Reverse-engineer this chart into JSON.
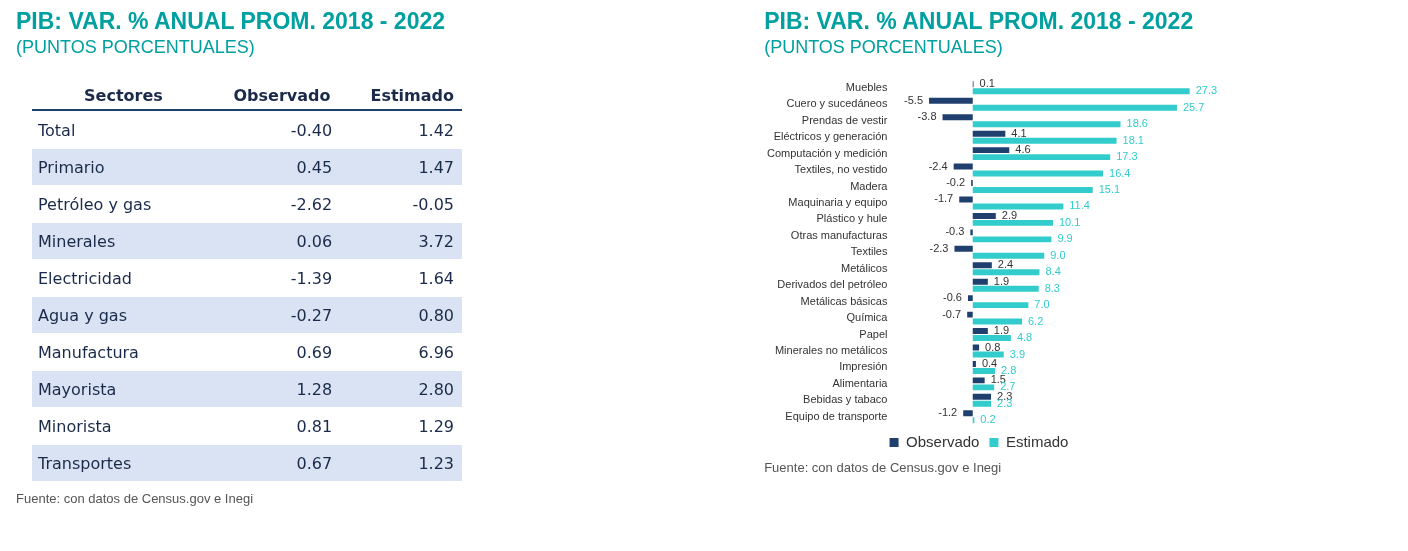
{
  "chart_data": [
    {
      "type": "other",
      "title": "PIB: VAR. % ANUAL PROM. 2018 - 2022",
      "subtitle": "(PUNTOS PORCENTUALES)",
      "ylabel": "Sectores",
      "categories": [
        "Total",
        "Primario",
        "Petróleo y gas",
        "Minerales",
        "Electricidad",
        "Agua y gas",
        "Manufactura",
        "Mayorista",
        "Minorista",
        "Transportes"
      ],
      "series": [
        {
          "name": "Observado",
          "values": [
            -0.4,
            0.45,
            -2.62,
            0.06,
            -1.39,
            -0.27,
            0.69,
            1.28,
            0.81,
            0.67
          ],
          "value_labels": [
            "-0.40",
            "0.45",
            "-2.62",
            "0.06",
            "-1.39",
            "-0.27",
            "0.69",
            "1.28",
            "0.81",
            "0.67"
          ]
        },
        {
          "name": "Estimado",
          "values": [
            1.42,
            1.47,
            -0.05,
            3.72,
            1.64,
            0.8,
            6.96,
            2.8,
            1.29,
            1.23
          ],
          "value_labels": [
            "1.42",
            "1.47",
            "-0.05",
            "3.72",
            "1.64",
            "0.80",
            "6.96",
            "2.80",
            "1.29",
            "1.23"
          ]
        }
      ],
      "data_labels": true,
      "annotations": [
        "Fuente: con datos de Census.gov e Inegi"
      ]
    },
    {
      "type": "bar",
      "orientation": "horizontal",
      "title": "PIB: VAR. % ANUAL PROM. 2018 - 2022",
      "subtitle": "(PUNTOS PORCENTUALES)",
      "categories": [
        "Muebles",
        "Cuero y sucedáneos",
        "Prendas de vestir",
        "Eléctricos y generación",
        "Computación y medición",
        "Textiles, no vestido",
        "Madera",
        "Maquinaria y equipo",
        "Plástico y hule",
        "Otras manufacturas",
        "Textiles",
        "Metálicos",
        "Derivados del petróleo",
        "Metálicas básicas",
        "Química",
        "Papel",
        "Minerales no metálicos",
        "Impresión",
        "Alimentaria",
        "Bebidas y tabaco",
        "Equipo de transporte"
      ],
      "series": [
        {
          "name": "Observado",
          "color": "#1f3f6e",
          "values": [
            0.1,
            -5.5,
            -3.8,
            4.1,
            4.6,
            -2.4,
            -0.2,
            -1.7,
            2.9,
            -0.3,
            -2.3,
            2.4,
            1.9,
            -0.6,
            -0.7,
            1.9,
            0.8,
            0.4,
            1.5,
            2.3,
            -1.2
          ],
          "value_labels": [
            "0.1",
            "-5.5",
            "-3.8",
            "4.1",
            "4.6",
            "-2.4",
            "-0.2",
            "-1.7",
            "2.9",
            "-0.3",
            "-2.3",
            "2.4",
            "1.9",
            "-0.6",
            "-0.7",
            "1.9",
            "0.8",
            "0.4",
            "1.5",
            "2.3",
            "-1.2"
          ]
        },
        {
          "name": "Estimado",
          "color": "#33cccc",
          "values": [
            27.3,
            25.7,
            18.6,
            18.1,
            17.3,
            16.4,
            15.1,
            11.4,
            10.1,
            9.9,
            9.0,
            8.4,
            8.3,
            7.0,
            6.2,
            4.8,
            3.9,
            2.8,
            2.7,
            2.3,
            0.2
          ],
          "value_labels": [
            "27.3",
            "25.7",
            "18.6",
            "18.1",
            "17.3",
            "16.4",
            "15.1",
            "11.4",
            "10.1",
            "9.9",
            "9.0",
            "8.4",
            "8.3",
            "7.0",
            "6.2",
            "4.8",
            "3.9",
            "2.8",
            "2.7",
            "2.3",
            "0.2"
          ]
        }
      ],
      "data_labels": true,
      "legend": "bottom",
      "annotations": [
        "Fuente: con datos de Census.gov e Inegi"
      ]
    }
  ]
}
